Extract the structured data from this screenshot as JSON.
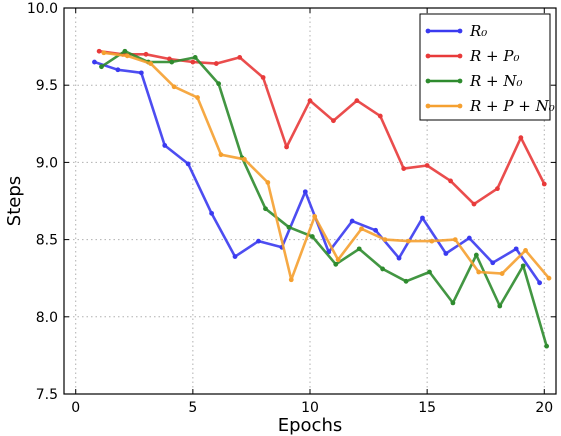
{
  "chart_data": {
    "type": "line",
    "title": "",
    "xlabel": "Epochs",
    "ylabel": "Steps",
    "xlim": [
      -0.5,
      20.5
    ],
    "ylim": [
      7.5,
      10.0
    ],
    "xticks": [
      0,
      5,
      10,
      15,
      20
    ],
    "yticks": [
      7.5,
      8.0,
      8.5,
      9.0,
      9.5,
      10.0
    ],
    "xtick_labels": [
      "0",
      "5",
      "10",
      "15",
      "20"
    ],
    "ytick_labels": [
      "7.5",
      "8.0",
      "8.5",
      "9.0",
      "9.5",
      "10.0"
    ],
    "grid": true,
    "legend_position": "top-right",
    "series": [
      {
        "name": "R₀",
        "color": "#3a3af0",
        "x": [
          0.8,
          1.8,
          2.8,
          3.8,
          4.8,
          5.8,
          6.8,
          7.8,
          8.8,
          9.8,
          10.8,
          11.8,
          12.8,
          13.8,
          14.8,
          15.8,
          16.8,
          17.8,
          18.8,
          19.8
        ],
        "values": [
          9.65,
          9.6,
          9.58,
          9.11,
          8.99,
          8.67,
          8.39,
          8.49,
          8.45,
          8.81,
          8.42,
          8.62,
          8.56,
          8.38,
          8.64,
          8.41,
          8.51,
          8.35,
          8.44,
          8.22
        ]
      },
      {
        "name": "R + P₀",
        "color": "#e83a3a",
        "x": [
          1,
          2,
          3,
          4,
          5,
          6,
          7,
          8,
          9,
          10,
          11,
          12,
          13,
          14,
          15,
          16,
          17,
          18,
          19,
          20
        ],
        "values": [
          9.72,
          9.7,
          9.7,
          9.67,
          9.65,
          9.64,
          9.68,
          9.55,
          9.1,
          9.4,
          9.27,
          9.4,
          9.3,
          8.96,
          8.98,
          8.88,
          8.73,
          8.83,
          9.16,
          8.86
        ]
      },
      {
        "name": "R + N₀",
        "color": "#2e8b2e",
        "x": [
          1.1,
          2.1,
          3.1,
          4.1,
          5.1,
          6.1,
          7.1,
          8.1,
          9.1,
          10.1,
          11.1,
          12.1,
          13.1,
          14.1,
          15.1,
          16.1,
          17.1,
          18.1,
          19.1,
          20.1
        ],
        "values": [
          9.62,
          9.72,
          9.65,
          9.65,
          9.68,
          9.51,
          9.03,
          8.7,
          8.58,
          8.52,
          8.34,
          8.44,
          8.31,
          8.23,
          8.29,
          8.09,
          8.4,
          8.07,
          8.33,
          7.81
        ]
      },
      {
        "name": "R + P + N₀",
        "color": "#f5a030",
        "x": [
          1.2,
          2.2,
          3.2,
          4.2,
          5.2,
          6.2,
          7.2,
          8.2,
          9.2,
          10.2,
          11.2,
          12.2,
          13.2,
          14.2,
          15.2,
          16.2,
          17.2,
          18.2,
          19.2,
          20.2
        ],
        "values": [
          9.71,
          9.69,
          9.64,
          9.49,
          9.42,
          9.05,
          9.02,
          8.87,
          8.24,
          8.65,
          8.37,
          8.57,
          8.5,
          8.49,
          8.49,
          8.5,
          8.29,
          8.28,
          8.43,
          8.25
        ]
      }
    ]
  }
}
